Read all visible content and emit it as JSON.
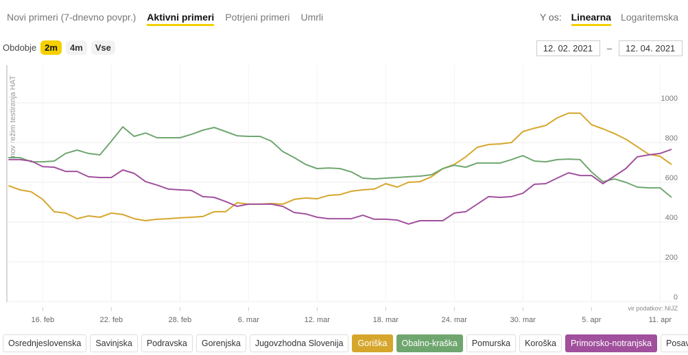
{
  "header": {
    "tabs": [
      {
        "label": "Novi primeri (7-dnevno povpr.)",
        "active": false
      },
      {
        "label": "Aktivni primeri",
        "active": true
      },
      {
        "label": "Potrjeni primeri",
        "active": false
      },
      {
        "label": "Umrli",
        "active": false
      }
    ],
    "y_axis_scale": {
      "label": "Y os:",
      "options": [
        {
          "label": "Linearna",
          "active": true
        },
        {
          "label": "Logaritemska",
          "active": false
        }
      ]
    },
    "period": {
      "label": "Obdobje",
      "options": [
        {
          "label": "2m",
          "active": true
        },
        {
          "label": "4m",
          "active": false
        },
        {
          "label": "Vse",
          "active": false
        }
      ]
    },
    "date_range": {
      "from": "12. 02. 2021",
      "separator": "–",
      "to": "12. 04. 2021"
    }
  },
  "chart_data": {
    "type": "line",
    "y_label": "nov režim testiranja HAT",
    "source": "vir podatkov: NIJZ",
    "log_scale": false,
    "grid": true,
    "ylim": [
      0,
      1200
    ],
    "yticks": [
      0,
      200,
      400,
      600,
      800,
      1000
    ],
    "categories": [
      null,
      null,
      null,
      "16. feb",
      null,
      null,
      null,
      null,
      null,
      "22. feb",
      null,
      null,
      null,
      null,
      null,
      "28. feb",
      null,
      null,
      null,
      null,
      null,
      "6. mar",
      null,
      null,
      null,
      null,
      null,
      "12. mar",
      null,
      null,
      null,
      null,
      null,
      "18. mar",
      null,
      null,
      null,
      null,
      null,
      "24. mar",
      null,
      null,
      null,
      null,
      null,
      "30. mar",
      null,
      null,
      null,
      null,
      null,
      "5. apr",
      null,
      null,
      null,
      null,
      null,
      "11. apr",
      null
    ],
    "series": [
      {
        "name": "Goriška",
        "color": "#d6a62c",
        "values": [
          583,
          562,
          552,
          514,
          452,
          445,
          417,
          431,
          424,
          445,
          438,
          417,
          407,
          414,
          417,
          421,
          424,
          428,
          452,
          452,
          497,
          490,
          490,
          493,
          490,
          514,
          521,
          517,
          534,
          538,
          555,
          562,
          566,
          593,
          576,
          600,
          603,
          628,
          669,
          690,
          728,
          776,
          790,
          793,
          800,
          855,
          872,
          886,
          924,
          948,
          948,
          890,
          869,
          845,
          817,
          779,
          741,
          731,
          690
        ]
      },
      {
        "name": "Obalno-kraška",
        "color": "#6fa66f",
        "values": [
          724,
          724,
          703,
          703,
          707,
          745,
          762,
          745,
          738,
          807,
          879,
          831,
          848,
          824,
          824,
          824,
          841,
          862,
          876,
          855,
          834,
          831,
          831,
          807,
          755,
          724,
          690,
          669,
          672,
          669,
          652,
          621,
          617,
          621,
          624,
          628,
          631,
          638,
          669,
          686,
          676,
          697,
          697,
          697,
          714,
          734,
          707,
          703,
          714,
          717,
          714,
          652,
          603,
          617,
          600,
          576,
          572,
          572,
          524
        ]
      },
      {
        "name": "Primorsko-notranjska",
        "color": "#a1509d",
        "values": [
          714,
          714,
          707,
          679,
          676,
          655,
          655,
          628,
          624,
          624,
          662,
          645,
          603,
          586,
          566,
          562,
          559,
          528,
          524,
          503,
          479,
          490,
          490,
          490,
          479,
          448,
          441,
          424,
          417,
          417,
          417,
          434,
          414,
          414,
          410,
          390,
          407,
          407,
          407,
          445,
          452,
          490,
          528,
          524,
          528,
          545,
          590,
          593,
          621,
          648,
          634,
          634,
          593,
          631,
          669,
          728,
          738,
          745,
          766
        ]
      }
    ],
    "other_regions": [
      "Osrednjeslovenska",
      "Savinjska",
      "Podravska",
      "Gorenjska",
      "Jugovzhodna Slovenija",
      "Pomurska",
      "Koroška",
      "Posavska"
    ]
  }
}
